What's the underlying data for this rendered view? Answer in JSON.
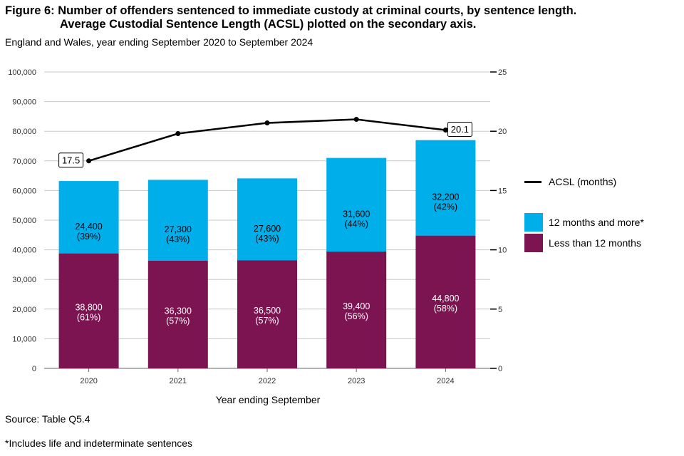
{
  "header": {
    "title_line1": "Figure 6: Number of offenders sentenced to immediate custody at criminal courts, by sentence length.",
    "title_line2": "Average Custodial Sentence Length (ACSL) plotted on the secondary axis.",
    "subtitle": "England and Wales, year ending September 2020 to September 2024"
  },
  "footer": {
    "source": "Source: Table Q5.4",
    "footnote": "*Includes life and indeterminate sentences"
  },
  "legend": {
    "acsl": "ACSL (months)",
    "over12": "12 months and more*",
    "under12": "Less than 12 months"
  },
  "colors": {
    "under12": "#7b1450",
    "over12": "#00aeea",
    "line": "#000000"
  },
  "chart_data": {
    "type": "bar",
    "stacked": true,
    "categories": [
      "2020",
      "2021",
      "2022",
      "2023",
      "2024"
    ],
    "xlabel": "Year ending September",
    "ylabel": "",
    "ylim": [
      0,
      100000
    ],
    "y_ticks": [
      "0",
      "10,000",
      "20,000",
      "30,000",
      "40,000",
      "50,000",
      "60,000",
      "70,000",
      "80,000",
      "90,000",
      "100,000"
    ],
    "y2lim": [
      0,
      25
    ],
    "y2_ticks": [
      "0",
      "5",
      "10",
      "15",
      "20",
      "25"
    ],
    "series": [
      {
        "name": "Less than 12 months",
        "values": [
          38800,
          36300,
          36500,
          39400,
          44800
        ],
        "labels": [
          "38,800",
          "36,300",
          "36,500",
          "39,400",
          "44,800"
        ],
        "pct_labels": [
          "(61%)",
          "(57%)",
          "(57%)",
          "(56%)",
          "(58%)"
        ]
      },
      {
        "name": "12 months and more*",
        "values": [
          24400,
          27300,
          27600,
          31600,
          32200
        ],
        "labels": [
          "24,400",
          "27,300",
          "27,600",
          "31,600",
          "32,200"
        ],
        "pct_labels": [
          "(39%)",
          "(43%)",
          "(43%)",
          "(44%)",
          "(42%)"
        ]
      }
    ],
    "line_series": {
      "name": "ACSL (months)",
      "axis": "secondary",
      "values": [
        17.5,
        19.8,
        20.7,
        21.0,
        20.1
      ],
      "point_labels": [
        "17.5",
        "",
        "",
        "",
        "20.1"
      ]
    }
  }
}
